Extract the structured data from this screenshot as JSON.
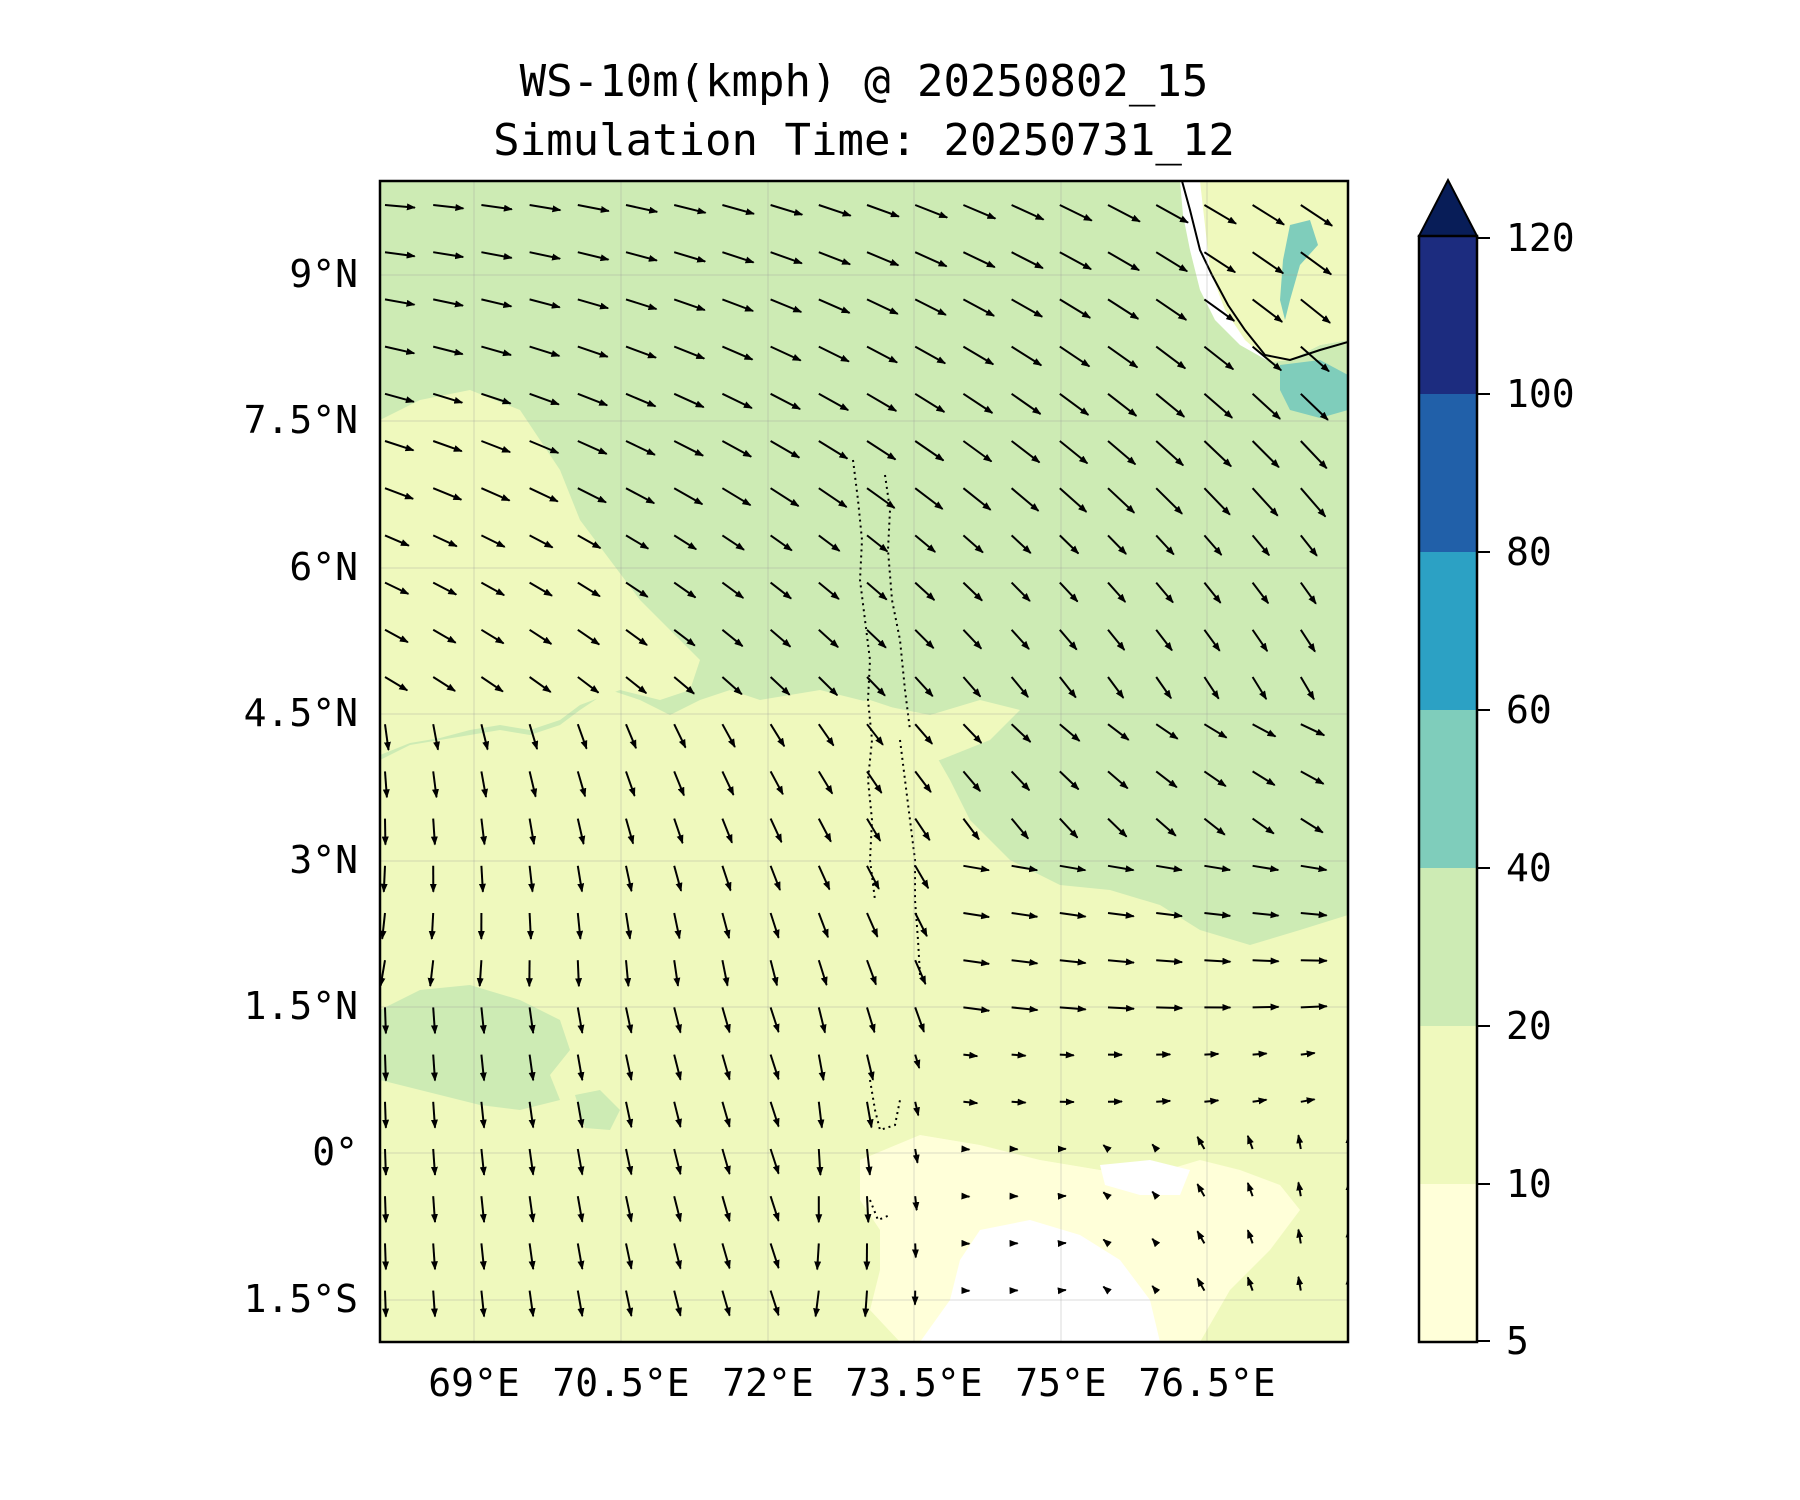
{
  "title": {
    "line1": "WS-10m(kmph) @ 20250802_15",
    "line2": "Simulation Time: 20250731_12"
  },
  "map": {
    "lon_range": [
      67.9,
      77.8
    ],
    "lat_range": [
      -2.0,
      9.9
    ],
    "x_ticks": [
      {
        "value": 69.0,
        "label": "69°E"
      },
      {
        "value": 70.5,
        "label": "70.5°E"
      },
      {
        "value": 72.0,
        "label": "72°E"
      },
      {
        "value": 73.5,
        "label": "73.5°E"
      },
      {
        "value": 75.0,
        "label": "75°E"
      },
      {
        "value": 76.5,
        "label": "76.5°E"
      }
    ],
    "y_ticks": [
      {
        "value": 9.0,
        "label": "9°N"
      },
      {
        "value": 7.5,
        "label": "7.5°N"
      },
      {
        "value": 6.0,
        "label": "6°N"
      },
      {
        "value": 4.5,
        "label": "4.5°N"
      },
      {
        "value": 3.0,
        "label": "3°N"
      },
      {
        "value": 1.5,
        "label": "1.5°N"
      },
      {
        "value": 0.0,
        "label": "0°"
      },
      {
        "value": -1.5,
        "label": "1.5°S"
      }
    ],
    "gridlines": true,
    "background_fill": "#eff9bd",
    "wind_barbs": "quiver arrows showing 10m wind direction; westerly/north-westerly in north, north-easterly to northerly in south-west"
  },
  "colorbar": {
    "extend": "max",
    "levels": [
      5,
      10,
      20,
      40,
      60,
      80,
      100,
      120
    ],
    "labels": [
      "5",
      "10",
      "20",
      "40",
      "60",
      "80",
      "100",
      "120"
    ],
    "colors": [
      "#ffffd9",
      "#eff9bd",
      "#cdebb4",
      "#7fcdbb",
      "#2ca1c4",
      "#2160a9",
      "#1c2c7f"
    ],
    "extend_color": "#081d58"
  },
  "chart_data": {
    "type": "heatmap",
    "title": "WS-10m(kmph) @ 20250802_15",
    "subtitle": "Simulation Time: 20250731_12",
    "variable": "10 m wind speed",
    "units": "kmph",
    "xlim": [
      67.9,
      77.8
    ],
    "ylim": [
      -2.0,
      9.9
    ],
    "regions": [
      {
        "range": "20-40",
        "area": "north of ~3°N east of 72°E and north of ~6°N west of 72°E"
      },
      {
        "range": "10-20",
        "area": "south and west of the map, central equatorial zone"
      },
      {
        "range": "5-10",
        "area": "south-east near equator around 74–76.5°E, 1°S–2°S"
      },
      {
        "range": "40-60",
        "area": "patches off south-west India near 77–77.8°E, 7.5–9.5°N"
      }
    ]
  }
}
